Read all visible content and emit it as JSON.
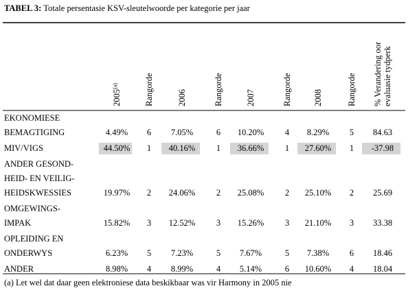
{
  "title": {
    "label": "TABEL 3:",
    "text": "Totale persentasie KSV-sleutelwoorde per kategorie per jaar"
  },
  "columns": [
    {
      "lines": [
        "2005"
      ],
      "note": "(a)"
    },
    {
      "lines": [
        "Rangorde"
      ]
    },
    {
      "lines": [
        "2006"
      ]
    },
    {
      "lines": [
        "Rangorde"
      ]
    },
    {
      "lines": [
        "2007"
      ]
    },
    {
      "lines": [
        "Rangorde"
      ]
    },
    {
      "lines": [
        "2008"
      ]
    },
    {
      "lines": [
        "Rangorde"
      ]
    },
    {
      "lines": [
        "% Verandering oor",
        "evaluasie tydperk"
      ]
    }
  ],
  "rows": [
    {
      "label": [
        "EKONOMIESE",
        "BEMAGTIGING"
      ],
      "cells": [
        "4.49%",
        "6",
        "7.05%",
        "6",
        "10.20%",
        "4",
        "8.29%",
        "5",
        "84.63"
      ],
      "highlight": false
    },
    {
      "label": [
        "MIV/VIGS"
      ],
      "cells": [
        "44.50%",
        "1",
        "40.16%",
        "1",
        "36.66%",
        "1",
        "27.60%",
        "1",
        "-37.98"
      ],
      "highlight": true
    },
    {
      "label": [
        "ANDER GESOND-",
        "HEID- EN VEILIG-",
        "HEIDSKWESSIES"
      ],
      "cells": [
        "19.97%",
        "2",
        "24.06%",
        "2",
        "25.08%",
        "2",
        "25.10%",
        "2",
        "25.69"
      ],
      "highlight": false
    },
    {
      "label": [
        "OMGEWINGS-",
        "IMPAK"
      ],
      "cells": [
        "15.82%",
        "3",
        "12.52%",
        "3",
        "15.26%",
        "3",
        "21.10%",
        "3",
        "33.38"
      ],
      "highlight": false
    },
    {
      "label": [
        "OPLEIDING EN",
        "ONDERWYS"
      ],
      "cells": [
        "6.23%",
        "5",
        "7.23%",
        "5",
        "7.67%",
        "5",
        "7.38%",
        "6",
        "18.46"
      ],
      "highlight": false
    },
    {
      "label": [
        "ANDER"
      ],
      "cells": [
        "8.98%",
        "4",
        "8.99%",
        "4",
        "5.14%",
        "6",
        "10.60%",
        "4",
        "18.04"
      ],
      "highlight": false
    }
  ],
  "footnote": "(a) Let wel dat daar geen elektroniese data beskikbaar was vir Harmony in 2005 nie"
}
